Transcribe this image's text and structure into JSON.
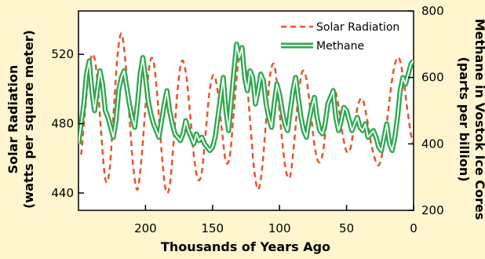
{
  "chart_data": {
    "type": "line",
    "xlabel": "Thousands of Years Ago",
    "ylabel_left": "Solar Radiation (watts per square meter)",
    "ylabel_left_lines": [
      "Solar Radiation",
      "(watts per square meter)"
    ],
    "ylabel_right": "Methane in Vostok Ice Cores (parts per billion)",
    "ylabel_right_lines": [
      "Methane in Vostok Ice Cores",
      "(parts per billion)"
    ],
    "xlim": [
      250,
      0
    ],
    "ylim_left": [
      430,
      545
    ],
    "ylim_right": [
      200,
      800
    ],
    "x_ticks": [
      200,
      150,
      100,
      50,
      0
    ],
    "y_left_ticks": [
      440,
      480,
      520
    ],
    "y_right_ticks": [
      200,
      400,
      600,
      800
    ],
    "legend_position": "top-right",
    "grid": false,
    "series": [
      {
        "name": "Solar Radiation",
        "axis": "left",
        "style": "dashed",
        "color": "#e8542a",
        "x": [
          248,
          245,
          242,
          239,
          236,
          233,
          230,
          227,
          224,
          221,
          218,
          215,
          212,
          209,
          206,
          203,
          200,
          197,
          194,
          191,
          188,
          185,
          182,
          179,
          176,
          173,
          170,
          167,
          164,
          161,
          158,
          155,
          152,
          149,
          146,
          143,
          140,
          137,
          134,
          131,
          128,
          125,
          122,
          119,
          116,
          113,
          110,
          107,
          104,
          101,
          98,
          95,
          92,
          89,
          86,
          83,
          80,
          77,
          74,
          71,
          68,
          65,
          62,
          59,
          56,
          53,
          50,
          47,
          44,
          41,
          38,
          35,
          32,
          29,
          26,
          23,
          20,
          17,
          14,
          11,
          8,
          5,
          2,
          0
        ],
        "values": [
          462,
          488,
          512,
          520,
          506,
          474,
          448,
          452,
          484,
          518,
          532,
          516,
          484,
          454,
          442,
          460,
          490,
          514,
          516,
          494,
          464,
          442,
          444,
          470,
          500,
          516,
          510,
          488,
          462,
          448,
          452,
          476,
          500,
          508,
          498,
          476,
          458,
          462,
          488,
          514,
          524,
          510,
          482,
          454,
          442,
          454,
          482,
          508,
          514,
          496,
          470,
          452,
          450,
          470,
          496,
          510,
          506,
          488,
          468,
          458,
          462,
          480,
          496,
          500,
          490,
          474,
          464,
          466,
          480,
          492,
          494,
          484,
          470,
          460,
          456,
          464,
          480,
          500,
          514,
          518,
          508,
          490,
          474,
          468
        ]
      },
      {
        "name": "Methane",
        "axis": "right",
        "style": "solid",
        "color": "#2fa84f",
        "x": [
          250,
          248,
          246,
          244,
          242,
          240,
          238,
          236,
          234,
          232,
          230,
          228,
          226,
          224,
          222,
          220,
          218,
          216,
          214,
          212,
          210,
          208,
          206,
          204,
          202,
          200,
          198,
          196,
          194,
          192,
          190,
          188,
          186,
          184,
          182,
          180,
          178,
          176,
          174,
          172,
          170,
          168,
          166,
          164,
          162,
          160,
          158,
          156,
          154,
          152,
          150,
          148,
          146,
          144,
          142,
          140,
          138,
          136,
          134,
          132,
          130,
          128,
          126,
          124,
          122,
          120,
          118,
          116,
          114,
          112,
          110,
          108,
          106,
          104,
          102,
          100,
          98,
          96,
          94,
          92,
          90,
          88,
          86,
          84,
          82,
          80,
          78,
          76,
          74,
          72,
          70,
          68,
          66,
          64,
          62,
          60,
          58,
          56,
          54,
          52,
          50,
          48,
          46,
          44,
          42,
          40,
          38,
          36,
          34,
          32,
          30,
          28,
          26,
          24,
          22,
          20,
          18,
          16,
          14,
          12,
          10,
          8,
          6,
          4,
          2,
          0
        ],
        "values": [
          400,
          460,
          520,
          610,
          650,
          560,
          500,
          560,
          620,
          580,
          500,
          480,
          450,
          420,
          470,
          560,
          600,
          620,
          570,
          520,
          480,
          450,
          520,
          610,
          660,
          600,
          530,
          490,
          460,
          440,
          420,
          470,
          520,
          560,
          500,
          460,
          430,
          420,
          410,
          430,
          470,
          440,
          420,
          400,
          430,
          410,
          420,
          400,
          390,
          380,
          390,
          420,
          480,
          540,
          600,
          500,
          440,
          530,
          620,
          700,
          660,
          690,
          600,
          560,
          620,
          600,
          520,
          560,
          610,
          590,
          520,
          480,
          450,
          520,
          580,
          550,
          500,
          460,
          440,
          500,
          560,
          600,
          540,
          480,
          440,
          420,
          470,
          510,
          540,
          480,
          440,
          430,
          460,
          520,
          540,
          560,
          480,
          440,
          470,
          510,
          500,
          470,
          440,
          460,
          480,
          450,
          440,
          460,
          420,
          430,
          440,
          420,
          390,
          380,
          420,
          460,
          400,
          380,
          420,
          480,
          560,
          600,
          580,
          610,
          640,
          650
        ]
      }
    ]
  }
}
